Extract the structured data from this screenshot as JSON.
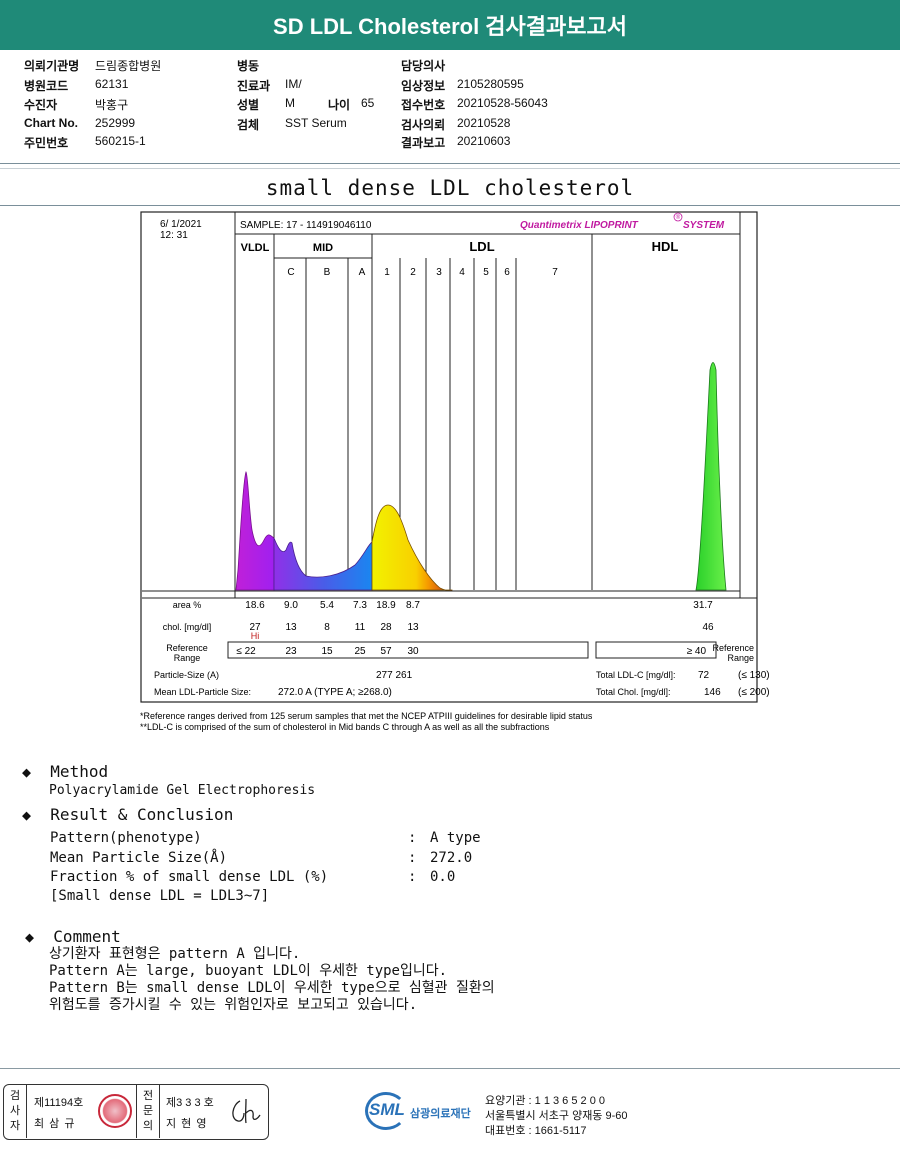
{
  "header": {
    "title": "SD LDL Cholesterol 검사결과보고서"
  },
  "info": {
    "col1": [
      {
        "label": "의뢰기관명",
        "value": "드림종합병원"
      },
      {
        "label": "병원코드",
        "value": "62131"
      },
      {
        "label": "수진자",
        "value": "박홍구"
      },
      {
        "label": "Chart No.",
        "value": "252999"
      },
      {
        "label": "주민번호",
        "value": "560215-1"
      }
    ],
    "col2": [
      {
        "label": "병동",
        "value": ""
      },
      {
        "label": "진료과",
        "value": "IM/"
      },
      {
        "label": "성별",
        "value": "M"
      },
      {
        "label": "검체",
        "value": "SST Serum"
      }
    ],
    "age": {
      "label": "나이",
      "value": "65"
    },
    "col3": [
      {
        "label": "담당의사",
        "value": ""
      },
      {
        "label": "임상정보",
        "value": "2105280595"
      },
      {
        "label": "접수번호",
        "value": "20210528-56043"
      },
      {
        "label": "검사의뢰",
        "value": "20210528"
      },
      {
        "label": "결과보고",
        "value": "20210603"
      }
    ]
  },
  "report": {
    "subtitle": "small dense LDL cholesterol",
    "date": "6/ 1/2021",
    "time": "12: 31",
    "sample": "SAMPLE:   17 - 114919046110",
    "brand": "Quantimetrix LIPOPRINT",
    "brand_mark": "®",
    "brand_suffix": "SYSTEM",
    "groups": [
      "VLDL",
      "MID",
      "LDL",
      "HDL"
    ],
    "bands": [
      "C",
      "B",
      "A",
      "1",
      "2",
      "3",
      "4",
      "5",
      "6",
      "7"
    ],
    "area_label": "area %",
    "chol_label": "chol. [mg/dl]",
    "hi_flag": "Hi",
    "ref_label": "Reference\nRange",
    "area": [
      "18.6",
      "9.0",
      "5.4",
      "7.3",
      "18.9",
      "8.7",
      "31.7"
    ],
    "chol": [
      "27",
      "13",
      "8",
      "11",
      "28",
      "13",
      "46"
    ],
    "ref": [
      "≤ 22",
      "23",
      "15",
      "25",
      "57",
      "30",
      "≥ 40"
    ],
    "particle_size_label": "Particle-Size (A)",
    "particle_size_values": "277  261",
    "mean_size_label": "Mean LDL-Particle Size:",
    "mean_size_value": "272.0 A  (TYPE A; ≥268.0)",
    "total_ldl_label": "Total LDL-C [mg/dl]:",
    "total_ldl_value": "72",
    "total_ldl_ref": "(≤ 130)",
    "total_chol_label": "Total Chol. [mg/dl]:",
    "total_chol_value": "146",
    "total_chol_ref": "(≤ 200)",
    "footnote1": "*Reference ranges derived from 125 serum samples that met the NCEP ATPIII guidelines for desirable lipid status",
    "footnote2": "**LDL-C is comprised of the sum of cholesterol in Mid bands C through A as well as all the subfractions"
  },
  "method": {
    "title": "Method",
    "text": "Polyacrylamide Gel Electrophoresis"
  },
  "result": {
    "title": "Result & Conclusion",
    "rows": [
      {
        "label": "Pattern(phenotype)",
        "value": "A type"
      },
      {
        "label": "Mean Particle Size(Å)",
        "value": "272.0"
      },
      {
        "label": "Fraction % of small dense LDL (%)",
        "value": "0.0"
      }
    ],
    "note": "[Small dense LDL = LDL3~7]"
  },
  "comment": {
    "title": "Comment",
    "lines": [
      "상기환자 표현형은 pattern A 입니다.",
      "Pattern A는 large, buoyant LDL이 우세한 type입니다.",
      "Pattern B는 small dense LDL이 우세한 type으로 심혈관 질환의",
      "위험도를 증가시킬 수 있는 위험인자로 보고되고 있습니다."
    ]
  },
  "footer": {
    "inspector_label": [
      "검",
      "사",
      "자"
    ],
    "inspector_no": "제11194호",
    "inspector_name": "최 삼 규",
    "specialist_label": [
      "전",
      "문",
      "의"
    ],
    "specialist_no": "제3 3 3 호",
    "specialist_name": "지 현 영",
    "logo_text": "SML",
    "org_name": "삼광의료재단",
    "agency": "요양기관 : 1 1 3 6 5 2 0 0",
    "address": "서울특별시 서초구 양재동 9-60",
    "phone": "대표번호 : 1661-5117"
  },
  "chart_data": {
    "type": "area",
    "title": "",
    "fractions": [
      "VLDL",
      "C",
      "B",
      "A",
      "1",
      "2",
      "3",
      "4",
      "5",
      "6",
      "7",
      "HDL"
    ],
    "area_percent": [
      18.6,
      9.0,
      5.4,
      7.3,
      18.9,
      8.7,
      0,
      0,
      0,
      0,
      0,
      31.7
    ],
    "cholesterol_mg_dl": [
      27,
      13,
      8,
      11,
      28,
      13,
      0,
      0,
      0,
      0,
      0,
      46
    ],
    "colors": {
      "vldl": "#b01fd8",
      "c": "#8a2be2",
      "b": "#3b6fe0",
      "a": "#1f6ae0",
      "ldl1": "#f5ee00",
      "ldl2": "#f5a400",
      "ldl3": "#d03a10",
      "hdl": "#28d32a"
    }
  }
}
